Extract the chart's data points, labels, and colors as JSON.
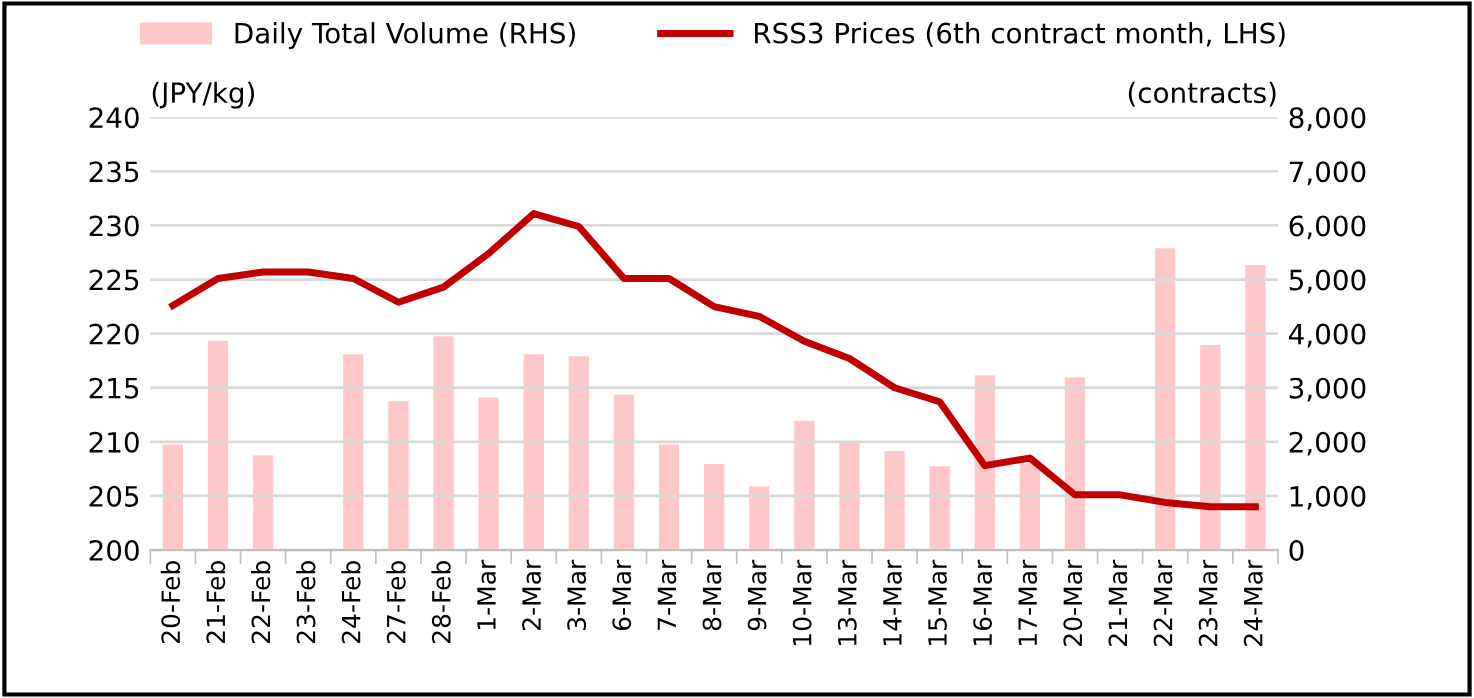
{
  "chart_data": {
    "type": "bar",
    "categories": [
      "20-Feb",
      "21-Feb",
      "22-Feb",
      "23-Feb",
      "24-Feb",
      "27-Feb",
      "28-Feb",
      "1-Mar",
      "2-Mar",
      "3-Mar",
      "6-Mar",
      "7-Mar",
      "8-Mar",
      "9-Mar",
      "10-Mar",
      "13-Mar",
      "14-Mar",
      "15-Mar",
      "16-Mar",
      "17-Mar",
      "20-Mar",
      "21-Mar",
      "22-Mar",
      "23-Mar",
      "24-Mar"
    ],
    "series": [
      {
        "name": "Daily Total Volume (RHS)",
        "axis": "y2",
        "color": "#ffc7c7",
        "values": [
          1950,
          3870,
          1750,
          0,
          3620,
          2750,
          3950,
          2820,
          3620,
          3580,
          2870,
          1950,
          1590,
          1180,
          2390,
          2000,
          1830,
          1550,
          3230,
          1600,
          3190,
          0,
          5580,
          3790,
          5270
        ]
      },
      {
        "name": "RSS3 Prices (6th contract month, LHS)",
        "type": "line",
        "color": "#c00000",
        "values": [
          222.6,
          225.1,
          225.7,
          225.7,
          225.1,
          222.9,
          224.3,
          227.4,
          231.1,
          229.9,
          225.1,
          225.1,
          222.5,
          221.6,
          219.3,
          217.7,
          215.0,
          213.7,
          207.8,
          208.5,
          205.1,
          205.1,
          204.4,
          204.0,
          204.0
        ]
      }
    ],
    "ylabel": "(JPY/kg)",
    "y2label": "(contracts)",
    "ylim": [
      200,
      240
    ],
    "yticks": [
      200,
      205,
      210,
      215,
      220,
      225,
      230,
      235,
      240
    ],
    "y2lim": [
      0,
      8000
    ],
    "y2ticks": [
      0,
      {
        "value": 1000,
        "label": "1,000"
      },
      {
        "value": 2000,
        "label": "2,000"
      },
      {
        "value": 3000,
        "label": "3,000"
      },
      {
        "value": 4000,
        "label": "4,000"
      },
      {
        "value": 5000,
        "label": "5,000"
      },
      {
        "value": 6000,
        "label": "6,000"
      },
      {
        "value": 7000,
        "label": "7,000"
      },
      {
        "value": 8000,
        "label": "8,000"
      }
    ],
    "grid": "y",
    "legend": "top",
    "marker": "none",
    "line_style": "solid"
  }
}
